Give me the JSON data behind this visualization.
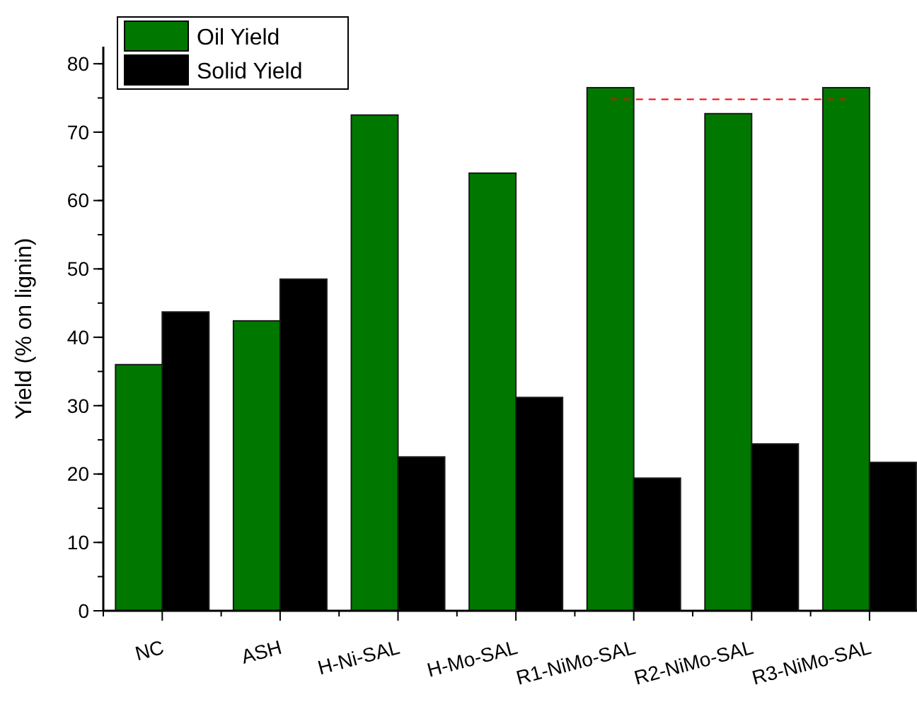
{
  "chart_data": {
    "type": "bar",
    "ylabel": "Yield (% on lignin)",
    "categories": [
      "NC",
      "ASH",
      "H-Ni-SAL",
      "H-Mo-SAL",
      "R1-NiMo-SAL",
      "R2-NiMo-SAL",
      "R3-NiMo-SAL"
    ],
    "series": [
      {
        "name": "Oil Yield",
        "color": "#007800",
        "values": [
          36.0,
          42.4,
          72.5,
          64.0,
          76.5,
          72.7,
          76.5
        ]
      },
      {
        "name": "Solid Yield",
        "color": "#000000",
        "values": [
          43.7,
          48.5,
          22.5,
          31.2,
          19.4,
          24.4,
          21.7
        ]
      }
    ],
    "ylim": [
      0,
      82.5
    ],
    "yticks": [
      0,
      10,
      20,
      30,
      40,
      50,
      60,
      70,
      80
    ],
    "ref_lines": [
      {
        "axis": "y",
        "value": 74.8,
        "color": "#ff0000",
        "line_style": "dashed"
      }
    ],
    "grid": false,
    "legend": "top left"
  }
}
